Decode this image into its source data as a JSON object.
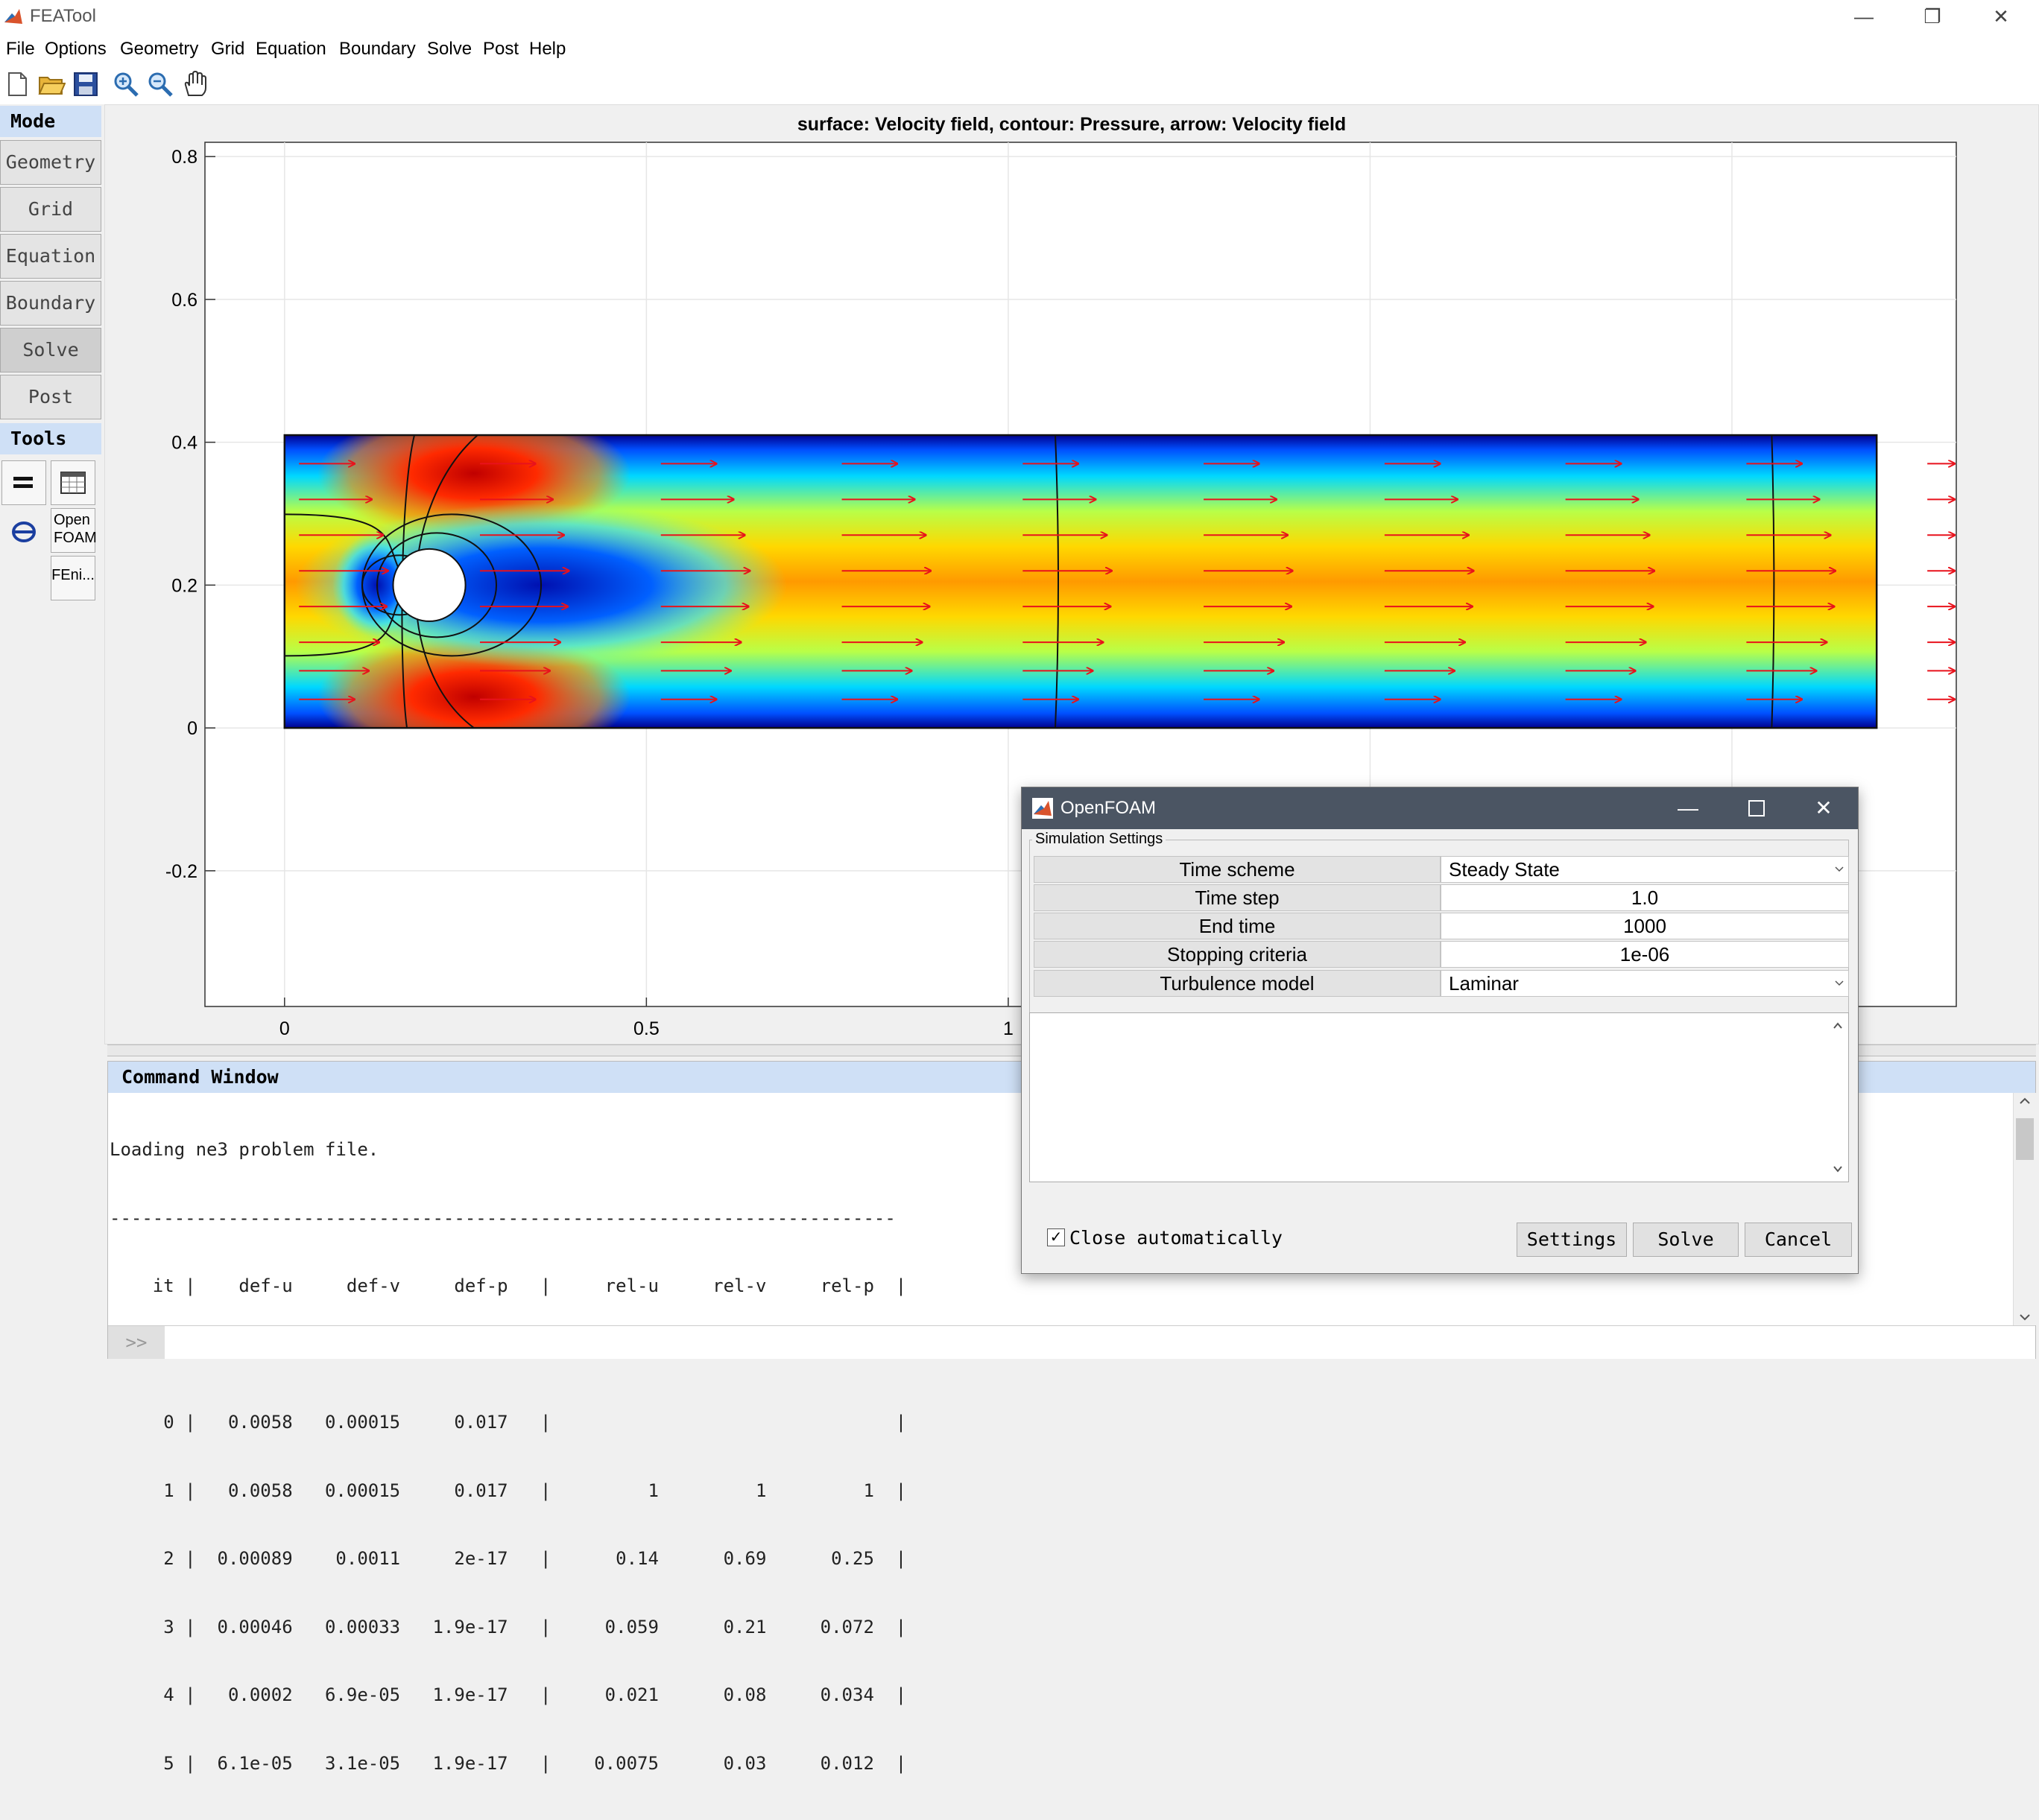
{
  "window": {
    "title": "FEATool",
    "minimize": "—",
    "restore": "❐",
    "close": "✕"
  },
  "menu": [
    "File",
    "Options",
    "Geometry",
    "Grid",
    "Equation",
    "Boundary",
    "Solve",
    "Post",
    "Help"
  ],
  "toolbar": {
    "icons": [
      "new-file-icon",
      "open-folder-icon",
      "save-icon",
      "zoom-in-icon",
      "zoom-out-icon",
      "pan-hand-icon"
    ]
  },
  "mode": {
    "header": "Mode",
    "buttons": [
      "Geometry",
      "Grid",
      "Equation",
      "Boundary",
      "Solve",
      "Post"
    ],
    "active": "Solve"
  },
  "tools": {
    "header": "Tools",
    "open_foam": "Open FOAM",
    "fenics": "FEni..."
  },
  "plot": {
    "title": "surface: Velocity field, contour: Pressure, arrow: Velocity field",
    "xticks": [
      "0",
      "0.5",
      "1"
    ],
    "yticks": [
      "0.8",
      "0.6",
      "0.4",
      "0.2",
      "0",
      "-0.2"
    ],
    "xlim": [
      -0.11,
      2.31
    ],
    "ylim": [
      -0.39,
      0.82
    ],
    "channel": {
      "x": [
        0,
        2.2
      ],
      "y": [
        0,
        0.41
      ]
    },
    "cylinder": {
      "cx": 0.2,
      "cy": 0.2,
      "r": 0.05
    },
    "colormap": "jet",
    "arrow_color": "#e8121c"
  },
  "command_window": {
    "header": "Command Window",
    "lines": [
      "Loading ne3 problem file.",
      "-------------------------------------------------------------------------",
      "    it |    def-u     def-v     def-p   |     rel-u     rel-v     rel-p  |",
      "-------------------------------------------------------------------------",
      "     0 |   0.0058   0.00015     0.017   |                                |",
      "     1 |   0.0058   0.00015     0.017   |         1         1         1  |",
      "     2 |  0.00089    0.0011     2e-17   |      0.14      0.69      0.25  |",
      "     3 |  0.00046   0.00033   1.9e-17   |     0.059      0.21     0.072  |",
      "     4 |   0.0002   6.9e-05   1.9e-17   |     0.021      0.08     0.034  |",
      "     5 |  6.1e-05   3.1e-05   1.9e-17   |    0.0075      0.03     0.012  |"
    ],
    "prompt": ">>"
  },
  "dialog": {
    "title": "OpenFOAM",
    "group_label": "Simulation Settings",
    "rows": [
      {
        "label": "Time scheme",
        "value": "Steady State"
      },
      {
        "label": "Time step",
        "value": "1.0"
      },
      {
        "label": "End time",
        "value": "1000"
      },
      {
        "label": "Stopping criteria",
        "value": "1e-06"
      },
      {
        "label": "Turbulence model",
        "value": "Laminar"
      }
    ],
    "close_automatically": "Close automatically",
    "close_checked": true,
    "buttons": {
      "settings": "Settings",
      "solve": "Solve",
      "cancel": "Cancel"
    }
  }
}
